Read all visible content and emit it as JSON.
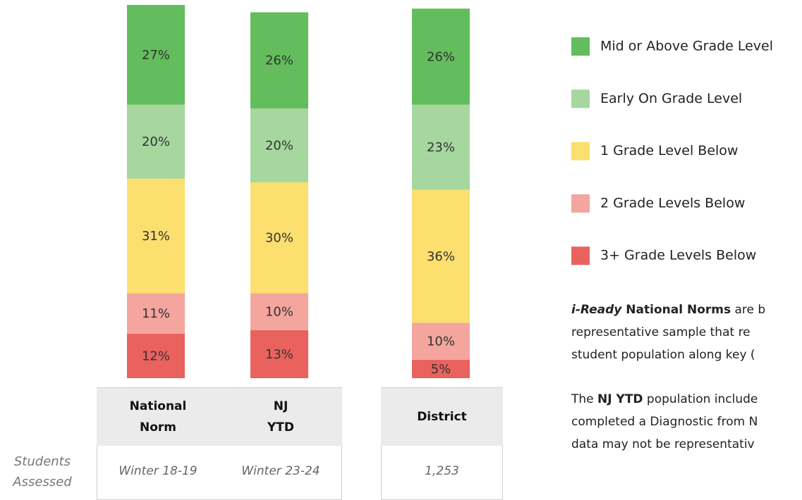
{
  "chart_data": {
    "type": "stacked_bar",
    "categories": [
      "National Norm",
      "NJ YTD",
      "District"
    ],
    "series": [
      {
        "name": "Mid or Above Grade Level",
        "color": "#63bd5c",
        "values": [
          27,
          26,
          26
        ],
        "value_labels": [
          "27%",
          "26%",
          "26%"
        ]
      },
      {
        "name": "Early On Grade Level",
        "color": "#a5d79e",
        "values": [
          20,
          20,
          23
        ],
        "value_labels": [
          "20%",
          "20%",
          "23%"
        ]
      },
      {
        "name": "1 Grade Level Below",
        "color": "#fbdf6f",
        "values": [
          31,
          30,
          36
        ],
        "value_labels": [
          "31%",
          "30%",
          "36%"
        ]
      },
      {
        "name": "2 Grade Levels Below",
        "color": "#f3a59e",
        "values": [
          11,
          10,
          10
        ],
        "value_labels": [
          "11%",
          "10%",
          "10%"
        ]
      },
      {
        "name": "3+ Grade Levels Below",
        "color": "#e9625e",
        "values": [
          12,
          13,
          5
        ],
        "value_labels": [
          "12%",
          "13%",
          "5%"
        ]
      }
    ],
    "ylim": [
      0,
      101
    ],
    "row_label": "Students Assessed",
    "row_values": [
      "Winter 18-19",
      "Winter 23-24",
      "1,253"
    ],
    "notes": [
      [
        [
          {
            "text": "i-Ready",
            "style": "bold-italic"
          },
          {
            "text": " National Norms",
            "style": "bold"
          },
          {
            "text": " are b",
            "style": "normal"
          }
        ],
        [
          {
            "text": "representative sample that re",
            "style": "normal"
          }
        ],
        [
          {
            "text": "student population along key (",
            "style": "normal"
          }
        ]
      ],
      [
        [
          {
            "text": "The ",
            "style": "normal"
          },
          {
            "text": "NJ YTD",
            "style": "bold"
          },
          {
            "text": " population include",
            "style": "normal"
          }
        ],
        [
          {
            "text": "completed a Diagnostic from N",
            "style": "normal"
          }
        ],
        [
          {
            "text": "data may not be representativ",
            "style": "normal"
          }
        ]
      ]
    ]
  }
}
